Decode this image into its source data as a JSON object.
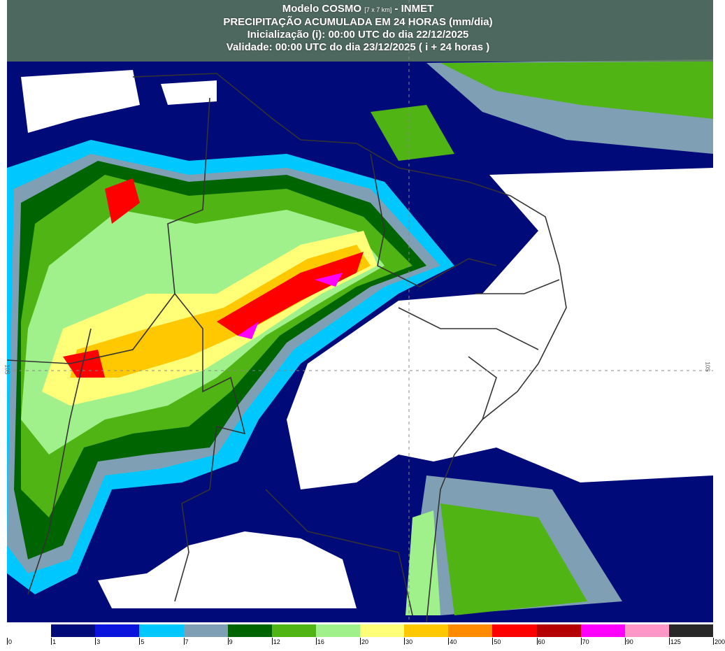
{
  "header": {
    "line1_model": "Modelo COSMO",
    "line1_res": "[7 x 7 km]",
    "line1_org": "- INMET",
    "line2": "PRECIPITAÇÃO ACUMULADA EM 24 HORAS (mm/dia)",
    "line3": "Inicialização (i): 00:00 UTC do dia 22/12/2025",
    "line4": "Validade: 00:00 UTC do dia 23/12/2025 ( i + 24 horas )"
  },
  "map": {
    "latitude_label_left": "10S",
    "latitude_label_right": "10S"
  },
  "legend": {
    "unit": "mm/dia",
    "colors": [
      "#ffffff",
      "#000a78",
      "#0a14dc",
      "#00c8ff",
      "#7fa0b4",
      "#006400",
      "#50b414",
      "#a0f08c",
      "#ffff78",
      "#ffc800",
      "#ff8c00",
      "#ff0000",
      "#b40000",
      "#ff00ff",
      "#ff96c8",
      "#6e6e78",
      "#282828"
    ],
    "tick_labels": [
      "0",
      "1",
      "3",
      "5",
      "7",
      "9",
      "12",
      "16",
      "20",
      "30",
      "40",
      "50",
      "60",
      "70",
      "90",
      "125",
      "200"
    ]
  }
}
